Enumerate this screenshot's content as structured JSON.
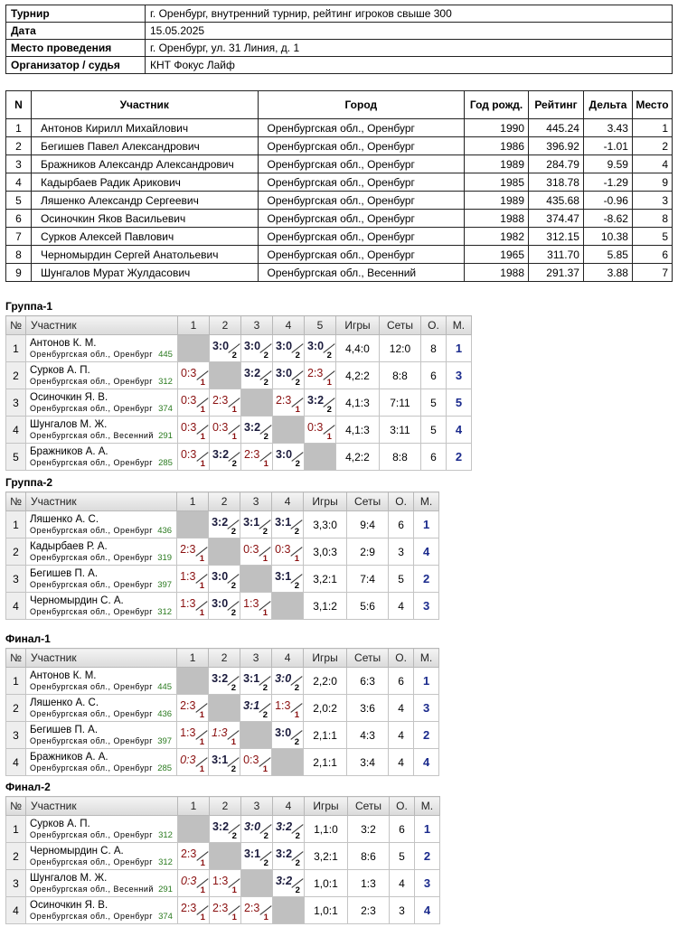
{
  "info": [
    {
      "key": "Турнир",
      "value": "г. Оренбург, внутренний турнир, рейтинг игроков свыше 300"
    },
    {
      "key": "Дата",
      "value": "15.05.2025"
    },
    {
      "key": "Место проведения",
      "value": "г. Оренбург, ул. 31 Линия, д. 1"
    },
    {
      "key": "Организатор / судья",
      "value": "КНТ Фокус Лайф"
    }
  ],
  "participants": {
    "headers": [
      "N",
      "Участник",
      "Город",
      "Год рожд.",
      "Рейтинг",
      "Дельта",
      "Место"
    ],
    "rows": [
      [
        "1",
        "Антонов Кирилл Михайлович",
        "Оренбургская обл., Оренбург",
        "1990",
        "445.24",
        "3.43",
        "1"
      ],
      [
        "2",
        "Бегишев Павел Александрович",
        "Оренбургская обл., Оренбург",
        "1986",
        "396.92",
        "-1.01",
        "2"
      ],
      [
        "3",
        "Бражников Александр Александрович",
        "Оренбургская обл., Оренбург",
        "1989",
        "284.79",
        "9.59",
        "4"
      ],
      [
        "4",
        "Кадырбаев Радик Арикович",
        "Оренбургская обл., Оренбург",
        "1985",
        "318.78",
        "-1.29",
        "9"
      ],
      [
        "5",
        "Ляшенко Александр Сергеевич",
        "Оренбургская обл., Оренбург",
        "1989",
        "435.68",
        "-0.96",
        "3"
      ],
      [
        "6",
        "Осиночкин Яков Васильевич",
        "Оренбургская обл., Оренбург",
        "1988",
        "374.47",
        "-8.62",
        "8"
      ],
      [
        "7",
        "Сурков Алексей Павлович",
        "Оренбургская обл., Оренбург",
        "1982",
        "312.15",
        "10.38",
        "5"
      ],
      [
        "8",
        "Черномырдин Сергей Анатольевич",
        "Оренбургская обл., Оренбург",
        "1965",
        "311.70",
        "5.85",
        "6"
      ],
      [
        "9",
        "Шунгалов Мурат Жулдасович",
        "Оренбургская обл., Весенний",
        "1988",
        "291.37",
        "3.88",
        "7"
      ]
    ]
  },
  "group_headers": {
    "num": "№",
    "player": "Участник",
    "games": "Игры",
    "sets": "Сеты",
    "points": "О.",
    "place": "М."
  },
  "groups": [
    {
      "title": "Группа-1",
      "players": [
        {
          "num": "1",
          "name": "Антонов К. М.",
          "city": "Оренбургская обл., Оренбург",
          "rating": "445",
          "cells": [
            null,
            [
              "3:0",
              "w",
              ""
            ],
            [
              "3:0",
              "w",
              ""
            ],
            [
              "3:0",
              "w",
              ""
            ],
            [
              "3:0",
              "w",
              ""
            ]
          ],
          "games": "4,4:0",
          "sets": "12:0",
          "points": "8",
          "place": "1"
        },
        {
          "num": "2",
          "name": "Сурков А. П.",
          "city": "Оренбургская обл., Оренбург",
          "rating": "312",
          "cells": [
            [
              "0:3",
              "l",
              ""
            ],
            null,
            [
              "3:2",
              "w",
              ""
            ],
            [
              "3:0",
              "w",
              ""
            ],
            [
              "2:3",
              "l",
              ""
            ]
          ],
          "games": "4,2:2",
          "sets": "8:8",
          "points": "6",
          "place": "3"
        },
        {
          "num": "3",
          "name": "Осиночкин Я. В.",
          "city": "Оренбургская обл., Оренбург",
          "rating": "374",
          "cells": [
            [
              "0:3",
              "l",
              ""
            ],
            [
              "2:3",
              "l",
              ""
            ],
            null,
            [
              "2:3",
              "l",
              ""
            ],
            [
              "3:2",
              "w",
              ""
            ]
          ],
          "games": "4,1:3",
          "sets": "7:11",
          "points": "5",
          "place": "5"
        },
        {
          "num": "4",
          "name": "Шунгалов М. Ж.",
          "city": "Оренбургская обл., Весенний",
          "rating": "291",
          "cells": [
            [
              "0:3",
              "l",
              ""
            ],
            [
              "0:3",
              "l",
              ""
            ],
            [
              "3:2",
              "w",
              ""
            ],
            null,
            [
              "0:3",
              "l",
              ""
            ]
          ],
          "games": "4,1:3",
          "sets": "3:11",
          "points": "5",
          "place": "4"
        },
        {
          "num": "5",
          "name": "Бражников А. А.",
          "city": "Оренбургская обл., Оренбург",
          "rating": "285",
          "cells": [
            [
              "0:3",
              "l",
              ""
            ],
            [
              "3:2",
              "w",
              ""
            ],
            [
              "2:3",
              "l",
              ""
            ],
            [
              "3:0",
              "w",
              ""
            ],
            null
          ],
          "games": "4,2:2",
          "sets": "8:8",
          "points": "6",
          "place": "2"
        }
      ]
    },
    {
      "title": "Группа-2",
      "players": [
        {
          "num": "1",
          "name": "Ляшенко А. С.",
          "city": "Оренбургская обл., Оренбург",
          "rating": "436",
          "cells": [
            null,
            [
              "3:2",
              "w",
              ""
            ],
            [
              "3:1",
              "w",
              ""
            ],
            [
              "3:1",
              "w",
              ""
            ]
          ],
          "games": "3,3:0",
          "sets": "9:4",
          "points": "6",
          "place": "1"
        },
        {
          "num": "2",
          "name": "Кадырбаев Р. А.",
          "city": "Оренбургская обл., Оренбург",
          "rating": "319",
          "cells": [
            [
              "2:3",
              "l",
              ""
            ],
            null,
            [
              "0:3",
              "l",
              ""
            ],
            [
              "0:3",
              "l",
              ""
            ]
          ],
          "games": "3,0:3",
          "sets": "2:9",
          "points": "3",
          "place": "4"
        },
        {
          "num": "3",
          "name": "Бегишев П. А.",
          "city": "Оренбургская обл., Оренбург",
          "rating": "397",
          "cells": [
            [
              "1:3",
              "l",
              ""
            ],
            [
              "3:0",
              "w",
              ""
            ],
            null,
            [
              "3:1",
              "w",
              ""
            ]
          ],
          "games": "3,2:1",
          "sets": "7:4",
          "points": "5",
          "place": "2"
        },
        {
          "num": "4",
          "name": "Черномырдин С. А.",
          "city": "Оренбургская обл., Оренбург",
          "rating": "312",
          "cells": [
            [
              "1:3",
              "l",
              ""
            ],
            [
              "3:0",
              "w",
              ""
            ],
            [
              "1:3",
              "l",
              ""
            ],
            null
          ],
          "games": "3,1:2",
          "sets": "5:6",
          "points": "4",
          "place": "3"
        }
      ]
    },
    {
      "title": "Финал-1",
      "players": [
        {
          "num": "1",
          "name": "Антонов К. М.",
          "city": "Оренбургская обл., Оренбург",
          "rating": "445",
          "cells": [
            null,
            [
              "3:2",
              "w",
              ""
            ],
            [
              "3:1",
              "w",
              ""
            ],
            [
              "3:0",
              "w",
              "t"
            ]
          ],
          "games": "2,2:0",
          "sets": "6:3",
          "points": "6",
          "place": "1"
        },
        {
          "num": "2",
          "name": "Ляшенко А. С.",
          "city": "Оренбургская обл., Оренбург",
          "rating": "436",
          "cells": [
            [
              "2:3",
              "l",
              ""
            ],
            null,
            [
              "3:1",
              "w",
              "t"
            ],
            [
              "1:3",
              "l",
              ""
            ]
          ],
          "games": "2,0:2",
          "sets": "3:6",
          "points": "4",
          "place": "3"
        },
        {
          "num": "3",
          "name": "Бегишев П. А.",
          "city": "Оренбургская обл., Оренбург",
          "rating": "397",
          "cells": [
            [
              "1:3",
              "l",
              ""
            ],
            [
              "1:3",
              "l",
              "t"
            ],
            null,
            [
              "3:0",
              "w",
              ""
            ]
          ],
          "games": "2,1:1",
          "sets": "4:3",
          "points": "4",
          "place": "2"
        },
        {
          "num": "4",
          "name": "Бражников А. А.",
          "city": "Оренбургская обл., Оренбург",
          "rating": "285",
          "cells": [
            [
              "0:3",
              "l",
              "t"
            ],
            [
              "3:1",
              "w",
              ""
            ],
            [
              "0:3",
              "l",
              ""
            ],
            null
          ],
          "games": "2,1:1",
          "sets": "3:4",
          "points": "4",
          "place": "4"
        }
      ]
    },
    {
      "title": "Финал-2",
      "players": [
        {
          "num": "1",
          "name": "Сурков А. П.",
          "city": "Оренбургская обл., Оренбург",
          "rating": "312",
          "cells": [
            null,
            [
              "3:2",
              "w",
              ""
            ],
            [
              "3:0",
              "w",
              "t"
            ],
            [
              "3:2",
              "w",
              "t"
            ]
          ],
          "games": "1,1:0",
          "sets": "3:2",
          "points": "6",
          "place": "1"
        },
        {
          "num": "2",
          "name": "Черномырдин С. А.",
          "city": "Оренбургская обл., Оренбург",
          "rating": "312",
          "cells": [
            [
              "2:3",
              "l",
              ""
            ],
            null,
            [
              "3:1",
              "w",
              ""
            ],
            [
              "3:2",
              "w",
              ""
            ]
          ],
          "games": "3,2:1",
          "sets": "8:6",
          "points": "5",
          "place": "2"
        },
        {
          "num": "3",
          "name": "Шунгалов М. Ж.",
          "city": "Оренбургская обл., Весенний",
          "rating": "291",
          "cells": [
            [
              "0:3",
              "l",
              "t"
            ],
            [
              "1:3",
              "l",
              ""
            ],
            null,
            [
              "3:2",
              "w",
              "t"
            ]
          ],
          "games": "1,0:1",
          "sets": "1:3",
          "points": "4",
          "place": "3"
        },
        {
          "num": "4",
          "name": "Осиночкин Я. В.",
          "city": "Оренбургская обл., Оренбург",
          "rating": "374",
          "cells": [
            [
              "2:3",
              "l",
              ""
            ],
            [
              "2:3",
              "l",
              ""
            ],
            [
              "2:3",
              "l",
              ""
            ],
            null
          ],
          "games": "1,0:1",
          "sets": "2:3",
          "points": "3",
          "place": "4"
        }
      ]
    }
  ]
}
